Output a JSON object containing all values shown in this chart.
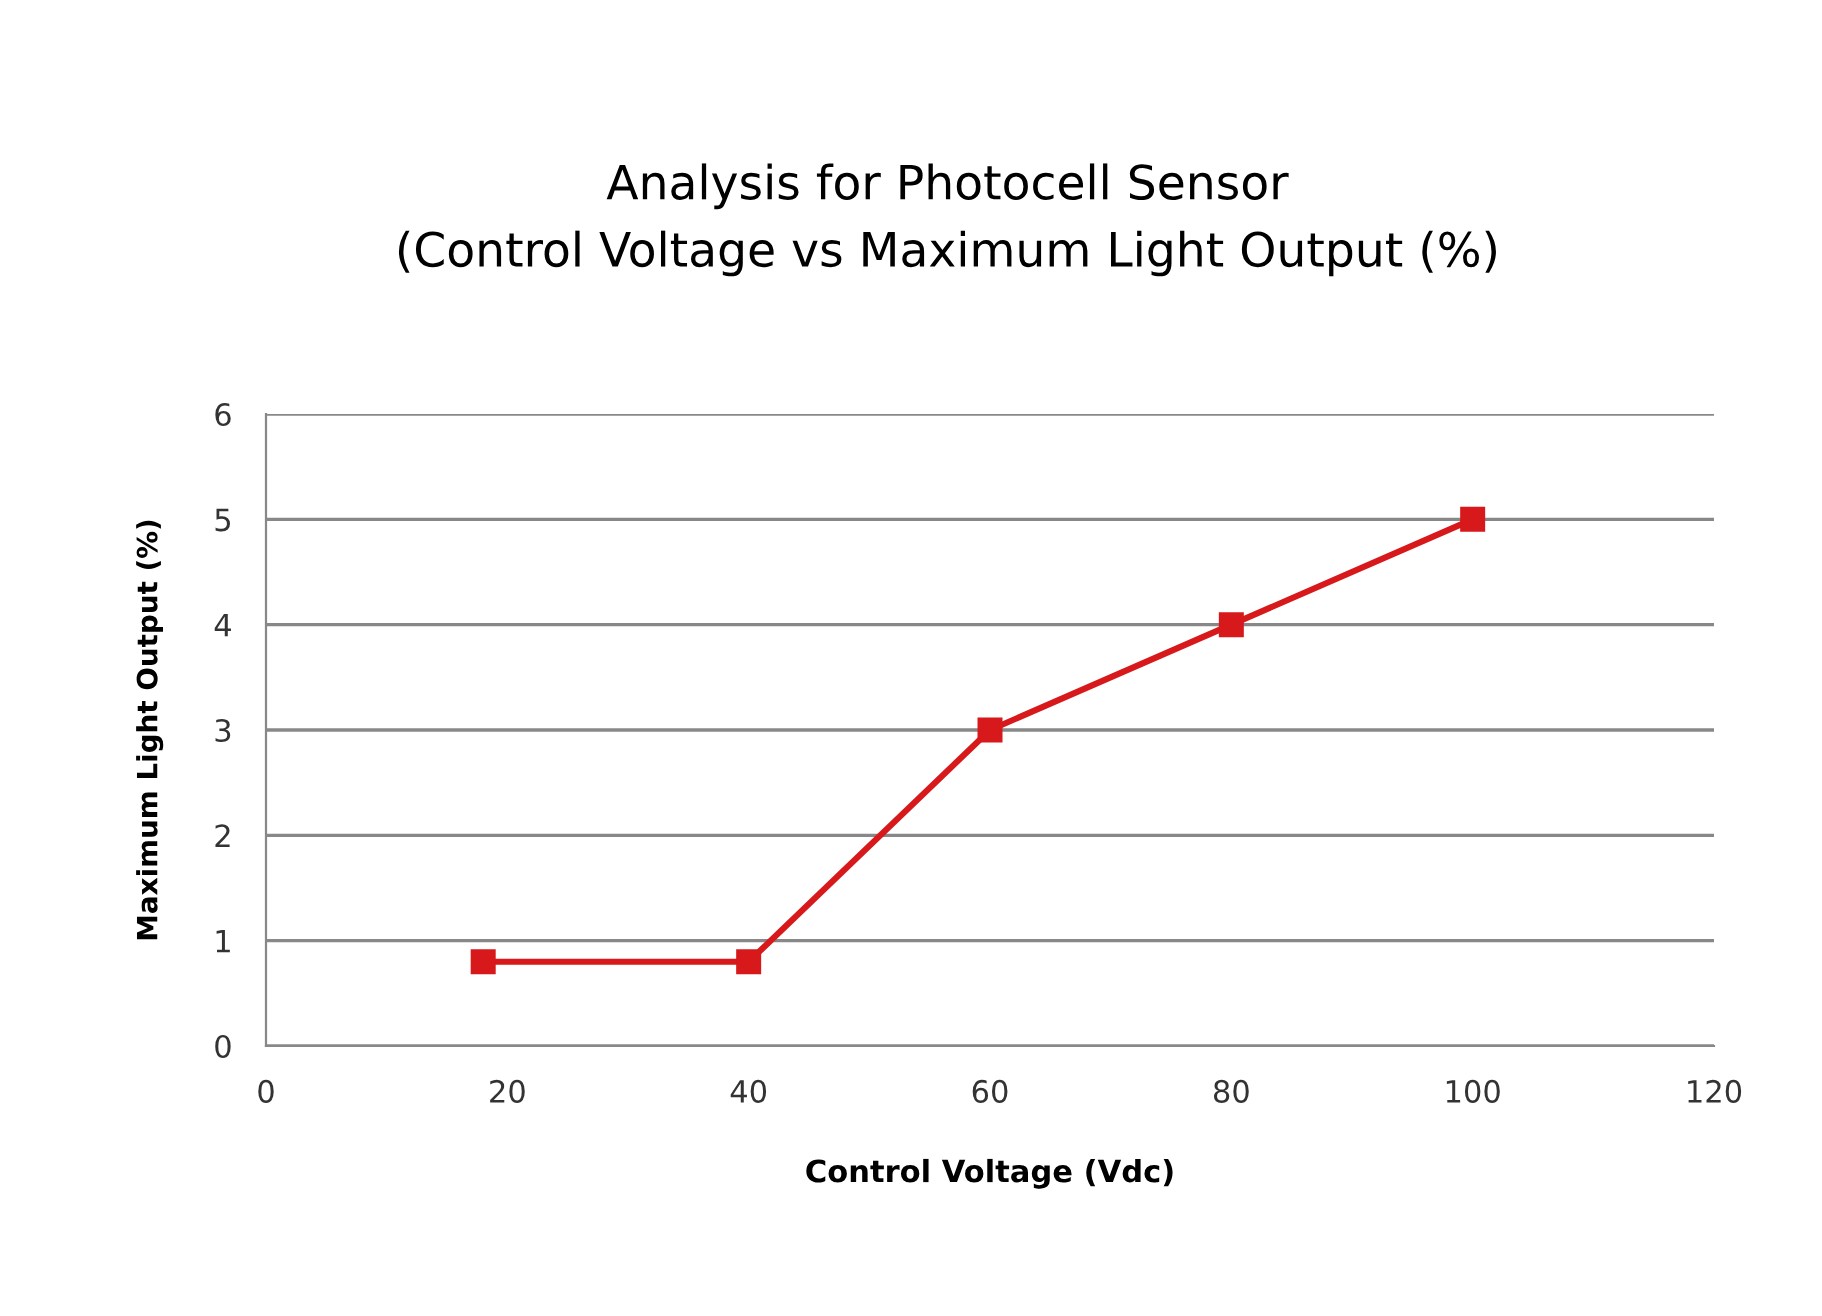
{
  "chart_data": {
    "type": "line",
    "title": "Analysis for Photocell Sensor\n(Control Voltage vs Maximum Light Output (%)",
    "xlabel": "Control Voltage (Vdc)",
    "ylabel": "Maximum Light Output (%)",
    "x": [
      18,
      40,
      60,
      80,
      100
    ],
    "series": [
      {
        "color": "#d7191c",
        "values": [
          0.8,
          0.8,
          3,
          4,
          5
        ]
      }
    ],
    "xlim": [
      0,
      120
    ],
    "xticks": [
      0,
      20,
      40,
      60,
      80,
      100,
      120
    ],
    "ylim": [
      0,
      6
    ],
    "yticks": [
      0,
      1,
      2,
      3,
      4,
      5,
      6
    ],
    "grid": "y",
    "marker": "square",
    "line_style": "solid",
    "legend": false
  }
}
